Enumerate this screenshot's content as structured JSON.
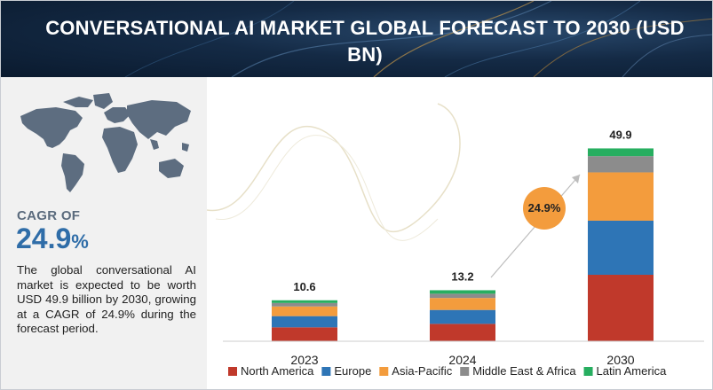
{
  "header": {
    "title": "CONVERSATIONAL AI MARKET GLOBAL FORECAST TO 2030 (USD BN)"
  },
  "left_panel": {
    "cagr_label": "CAGR OF",
    "cagr_number": "24.9",
    "cagr_percent": "%",
    "summary": "The global conversational AI market is expected to be worth USD 49.9 billion by 2030, growing at a CAGR of 24.9% during the forecast period."
  },
  "colors": {
    "north_america": "#c0392b",
    "europe": "#2e75b6",
    "asia_pacific": "#f39c3d",
    "middle_east_africa": "#8c8c8c",
    "latin_america": "#27ae60",
    "cagr_bubble": "#f39c3d",
    "cagr_text": "#2f6da8"
  },
  "chart_data": {
    "type": "bar",
    "stacked": true,
    "categories": [
      "2023",
      "2024",
      "2030"
    ],
    "totals": [
      "10.6",
      "13.2",
      "49.9"
    ],
    "series": [
      {
        "name": "North America",
        "color": "#c0392b",
        "values": [
          3.6,
          4.5,
          17.2
        ]
      },
      {
        "name": "Europe",
        "color": "#2e75b6",
        "values": [
          2.9,
          3.6,
          14.0
        ]
      },
      {
        "name": "Asia-Pacific",
        "color": "#f39c3d",
        "values": [
          2.5,
          3.1,
          12.5
        ]
      },
      {
        "name": "Middle East & Africa",
        "color": "#8c8c8c",
        "values": [
          0.9,
          1.1,
          4.2
        ]
      },
      {
        "name": "Latin America",
        "color": "#27ae60",
        "values": [
          0.7,
          0.9,
          2.0
        ]
      }
    ],
    "ylim": [
      0,
      50
    ],
    "grid": false,
    "legend_position": "bottom",
    "annotation": {
      "label": "24.9%"
    }
  }
}
